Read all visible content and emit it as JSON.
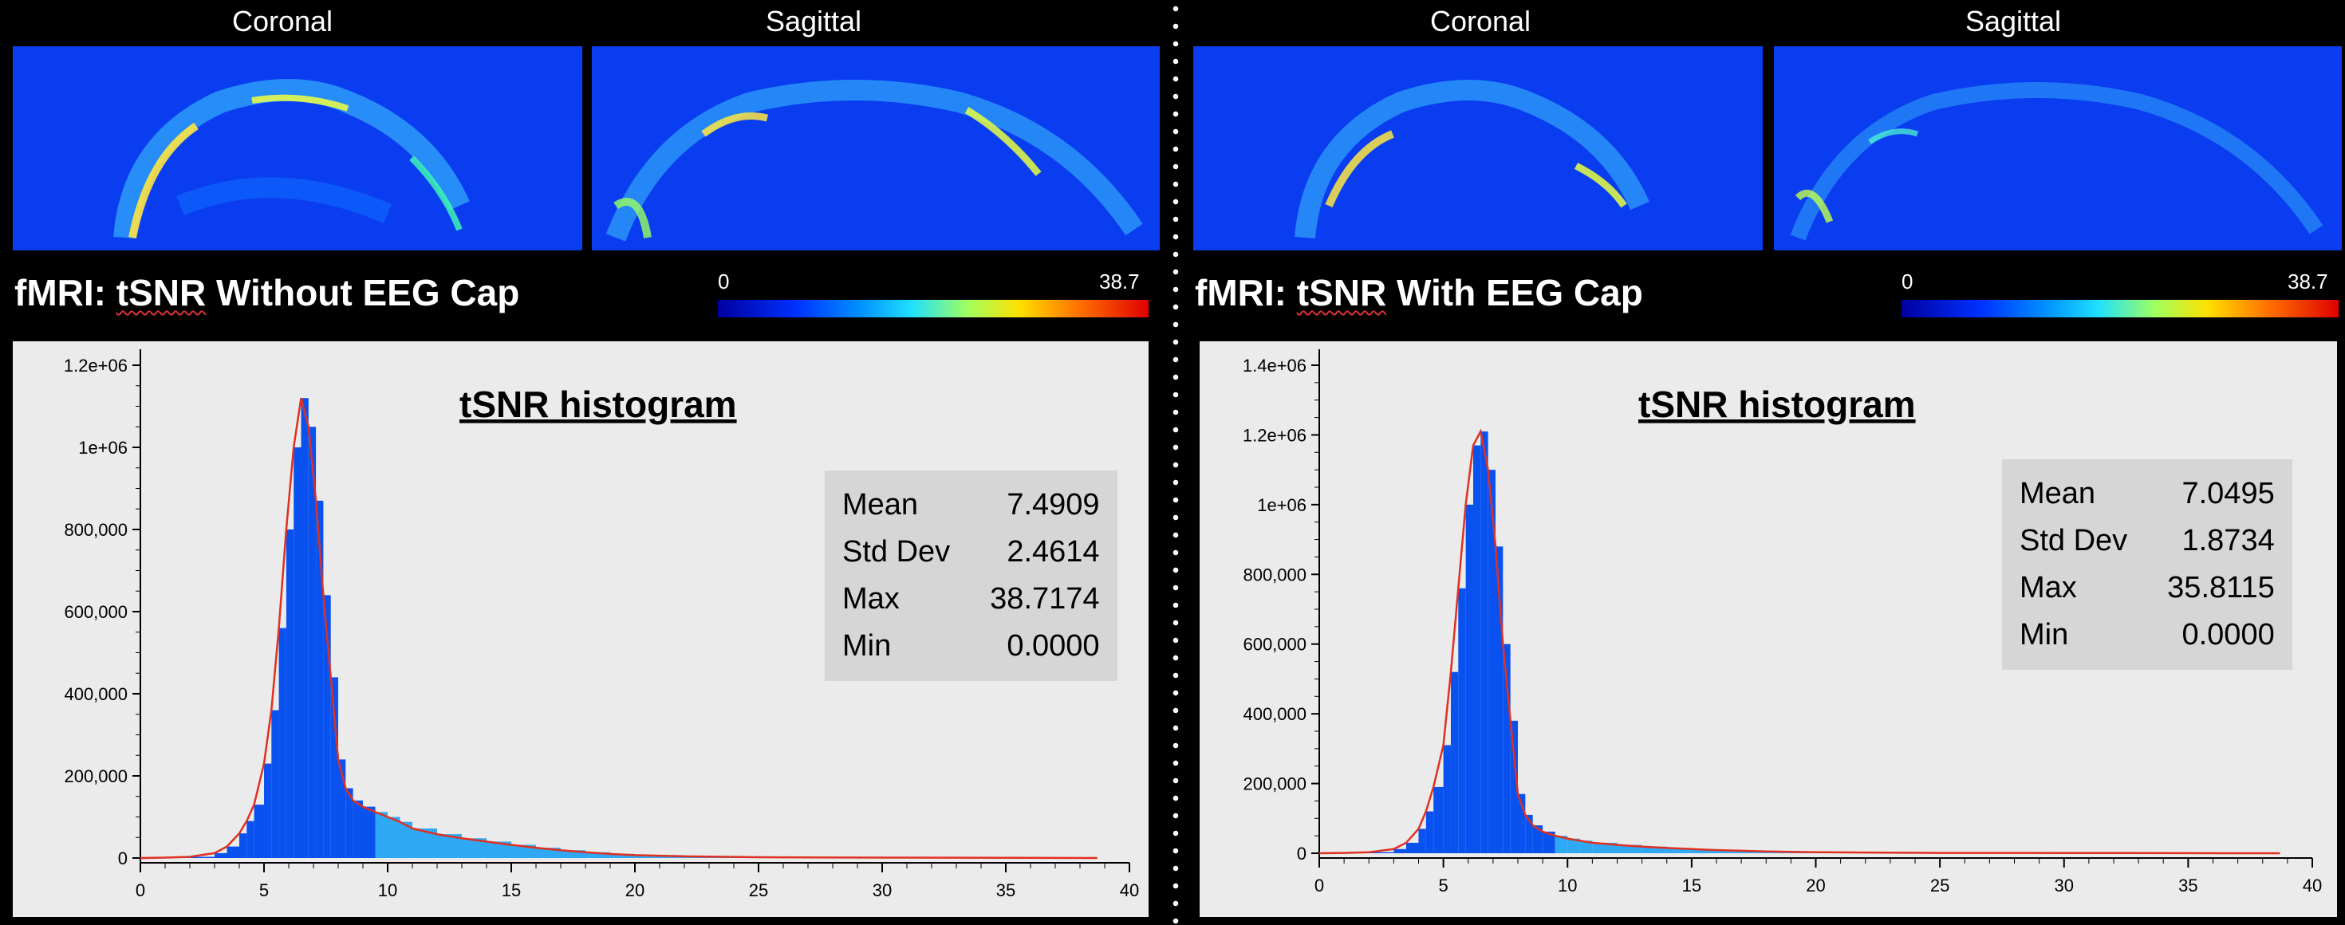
{
  "panels": [
    {
      "views": [
        "Coronal",
        "Sagittal"
      ],
      "heading_prefix": "fMRI: ",
      "heading_key": "tSNR",
      "heading_rest": " Without EEG Cap",
      "colorbar": {
        "min": "0",
        "max": "38.7"
      },
      "hist_title": "tSNR histogram",
      "stats": [
        {
          "label": "Mean",
          "value": "7.4909"
        },
        {
          "label": "Std Dev",
          "value": "2.4614"
        },
        {
          "label": "Max",
          "value": "38.7174"
        },
        {
          "label": "Min",
          "value": "0.0000"
        }
      ]
    },
    {
      "views": [
        "Coronal",
        "Sagittal"
      ],
      "heading_prefix": "fMRI: ",
      "heading_key": "tSNR",
      "heading_rest": " With EEG Cap",
      "colorbar": {
        "min": "0",
        "max": "38.7"
      },
      "hist_title": "tSNR histogram",
      "stats": [
        {
          "label": "Mean",
          "value": "7.0495"
        },
        {
          "label": "Std Dev",
          "value": "1.8734"
        },
        {
          "label": "Max",
          "value": "35.8115"
        },
        {
          "label": "Min",
          "value": "0.0000"
        }
      ]
    }
  ],
  "chart_data": [
    {
      "type": "bar",
      "title": "tSNR histogram",
      "xlim": [
        0,
        40
      ],
      "ylim": [
        0,
        1200000
      ],
      "x_ticks": [
        0,
        5,
        10,
        15,
        20,
        25,
        30,
        35,
        40
      ],
      "y_ticks": [
        0,
        200000,
        400000,
        600000,
        800000,
        1000000,
        1200000
      ],
      "y_tick_labels": [
        "0",
        "200,000",
        "400,000",
        "600,000",
        "800,000",
        "1e+06",
        "1.2e+06"
      ],
      "x": [
        0,
        1,
        2,
        3,
        3.5,
        4,
        4.3,
        4.6,
        5,
        5.3,
        5.6,
        5.9,
        6.2,
        6.5,
        6.8,
        7.1,
        7.4,
        7.7,
        8,
        8.3,
        8.6,
        9,
        9.5,
        10,
        10.5,
        11,
        12,
        13,
        14,
        15,
        16,
        17,
        18,
        19,
        20,
        22,
        25,
        30,
        35,
        38.7
      ],
      "values": [
        0,
        1000,
        3000,
        12000,
        28000,
        60000,
        90000,
        130000,
        230000,
        360000,
        560000,
        800000,
        1000000,
        1120000,
        1050000,
        870000,
        640000,
        440000,
        240000,
        170000,
        140000,
        125000,
        112000,
        100000,
        88000,
        72000,
        58000,
        48000,
        40000,
        32000,
        25000,
        19000,
        14000,
        10000,
        7000,
        4000,
        2000,
        1000,
        500,
        0
      ],
      "color": "#0a52f0",
      "line_color": "#e03020"
    },
    {
      "type": "bar",
      "title": "tSNR histogram",
      "xlim": [
        0,
        40
      ],
      "ylim": [
        0,
        1400000
      ],
      "x_ticks": [
        0,
        5,
        10,
        15,
        20,
        25,
        30,
        35,
        40
      ],
      "y_ticks": [
        0,
        200000,
        400000,
        600000,
        800000,
        1000000,
        1200000,
        1400000
      ],
      "y_tick_labels": [
        "0",
        "200,000",
        "400,000",
        "600,000",
        "800,000",
        "1e+06",
        "1.2e+06",
        "1.4e+06"
      ],
      "x": [
        0,
        1,
        2,
        3,
        3.5,
        4,
        4.3,
        4.6,
        5,
        5.3,
        5.6,
        5.9,
        6.2,
        6.5,
        6.8,
        7.1,
        7.4,
        7.7,
        8,
        8.3,
        8.6,
        9,
        9.5,
        10,
        10.5,
        11,
        12,
        13,
        14,
        15,
        16,
        17,
        18,
        19,
        20,
        22,
        25,
        30,
        35,
        38.7
      ],
      "values": [
        0,
        1000,
        3000,
        12000,
        30000,
        70000,
        120000,
        190000,
        310000,
        520000,
        760000,
        1000000,
        1170000,
        1210000,
        1100000,
        880000,
        600000,
        380000,
        170000,
        110000,
        80000,
        62000,
        50000,
        42000,
        36000,
        30000,
        24000,
        19000,
        15000,
        12000,
        9000,
        7000,
        5000,
        4000,
        3000,
        2000,
        1000,
        700,
        300,
        0
      ],
      "color": "#0a52f0",
      "line_color": "#e03020"
    }
  ]
}
